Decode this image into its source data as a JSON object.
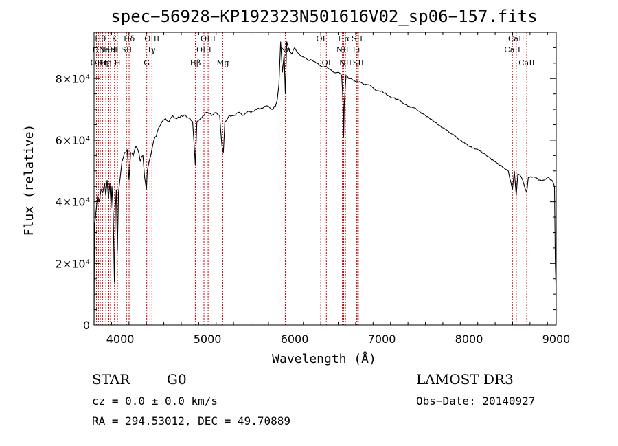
{
  "chart_data": {
    "type": "line",
    "title": "spec−56928−KP192323N501616V02_sp06−157.fits",
    "xlabel": "Wavelength (Å)",
    "ylabel": "Flux (relative)",
    "xlim": [
      3700,
      9000
    ],
    "ylim": [
      0,
      95000
    ],
    "xticks": [
      {
        "value": 4000,
        "label": "4000"
      },
      {
        "value": 5000,
        "label": "5000"
      },
      {
        "value": 6000,
        "label": "6000"
      },
      {
        "value": 7000,
        "label": "7000"
      },
      {
        "value": 8000,
        "label": "8000"
      },
      {
        "value": 9000,
        "label": "9000"
      }
    ],
    "yticks": [
      {
        "value": 0,
        "label": "0"
      },
      {
        "value": 20000,
        "label": "2×10⁴"
      },
      {
        "value": 40000,
        "label": "4×10⁴"
      },
      {
        "value": 60000,
        "label": "6×10⁴"
      },
      {
        "value": 80000,
        "label": "8×10⁴"
      }
    ],
    "spectrum": [
      [
        3700,
        0
      ],
      [
        3705,
        32000
      ],
      [
        3720,
        36000
      ],
      [
        3740,
        42000
      ],
      [
        3760,
        40000
      ],
      [
        3780,
        44000
      ],
      [
        3800,
        43000
      ],
      [
        3820,
        46000
      ],
      [
        3835,
        42000
      ],
      [
        3850,
        47000
      ],
      [
        3865,
        41000
      ],
      [
        3880,
        46000
      ],
      [
        3895,
        38000
      ],
      [
        3905,
        45000
      ],
      [
        3920,
        36000
      ],
      [
        3933,
        14000
      ],
      [
        3945,
        38000
      ],
      [
        3955,
        44000
      ],
      [
        3968,
        24000
      ],
      [
        3980,
        43000
      ],
      [
        4000,
        48000
      ],
      [
        4020,
        53000
      ],
      [
        4050,
        56000
      ],
      [
        4080,
        57000
      ],
      [
        4101,
        47000
      ],
      [
        4120,
        56000
      ],
      [
        4150,
        55000
      ],
      [
        4180,
        58000
      ],
      [
        4200,
        57000
      ],
      [
        4230,
        53000
      ],
      [
        4260,
        55000
      ],
      [
        4280,
        48000
      ],
      [
        4300,
        44000
      ],
      [
        4310,
        50000
      ],
      [
        4330,
        53000
      ],
      [
        4350,
        55000
      ],
      [
        4370,
        58000
      ],
      [
        4400,
        61000
      ],
      [
        4440,
        64000
      ],
      [
        4480,
        66000
      ],
      [
        4520,
        67000
      ],
      [
        4560,
        66000
      ],
      [
        4600,
        68000
      ],
      [
        4650,
        67000
      ],
      [
        4700,
        68000
      ],
      [
        4750,
        68000
      ],
      [
        4800,
        67000
      ],
      [
        4830,
        66000
      ],
      [
        4861,
        52000
      ],
      [
        4880,
        66000
      ],
      [
        4920,
        67000
      ],
      [
        4960,
        68000
      ],
      [
        5000,
        69000
      ],
      [
        5050,
        68000
      ],
      [
        5100,
        69000
      ],
      [
        5140,
        68000
      ],
      [
        5167,
        58000
      ],
      [
        5183,
        56000
      ],
      [
        5200,
        66000
      ],
      [
        5250,
        68000
      ],
      [
        5300,
        68000
      ],
      [
        5350,
        69000
      ],
      [
        5400,
        68000
      ],
      [
        5450,
        69000
      ],
      [
        5500,
        69000
      ],
      [
        5550,
        70000
      ],
      [
        5600,
        70000
      ],
      [
        5650,
        71000
      ],
      [
        5700,
        71000
      ],
      [
        5740,
        70000
      ],
      [
        5780,
        71000
      ],
      [
        5800,
        73000
      ],
      [
        5820,
        78000
      ],
      [
        5840,
        92000
      ],
      [
        5860,
        82000
      ],
      [
        5880,
        88000
      ],
      [
        5893,
        75000
      ],
      [
        5910,
        92000
      ],
      [
        5940,
        89000
      ],
      [
        5970,
        88000
      ],
      [
        6000,
        90000
      ],
      [
        6050,
        88000
      ],
      [
        6100,
        87000
      ],
      [
        6150,
        86000
      ],
      [
        6200,
        86000
      ],
      [
        6250,
        85000
      ],
      [
        6300,
        84000
      ],
      [
        6350,
        84000
      ],
      [
        6400,
        83000
      ],
      [
        6450,
        82000
      ],
      [
        6500,
        82000
      ],
      [
        6540,
        81000
      ],
      [
        6560,
        70000
      ],
      [
        6563,
        61000
      ],
      [
        6570,
        72000
      ],
      [
        6590,
        81000
      ],
      [
        6620,
        80000
      ],
      [
        6650,
        80000
      ],
      [
        6700,
        79000
      ],
      [
        6750,
        79000
      ],
      [
        6800,
        78000
      ],
      [
        6850,
        78000
      ],
      [
        6900,
        77000
      ],
      [
        6950,
        76000
      ],
      [
        7000,
        76000
      ],
      [
        7100,
        74000
      ],
      [
        7200,
        73000
      ],
      [
        7300,
        71000
      ],
      [
        7400,
        70000
      ],
      [
        7500,
        68000
      ],
      [
        7600,
        66000
      ],
      [
        7700,
        64000
      ],
      [
        7800,
        62000
      ],
      [
        7900,
        60000
      ],
      [
        8000,
        58000
      ],
      [
        8100,
        57000
      ],
      [
        8200,
        55000
      ],
      [
        8300,
        53000
      ],
      [
        8400,
        51000
      ],
      [
        8450,
        50000
      ],
      [
        8498,
        44000
      ],
      [
        8520,
        50000
      ],
      [
        8542,
        42000
      ],
      [
        8560,
        49000
      ],
      [
        8600,
        48000
      ],
      [
        8662,
        43000
      ],
      [
        8680,
        48000
      ],
      [
        8750,
        48000
      ],
      [
        8800,
        47000
      ],
      [
        8850,
        47000
      ],
      [
        8900,
        48000
      ],
      [
        8950,
        47000
      ],
      [
        8980,
        45000
      ],
      [
        8990,
        20000
      ],
      [
        9000,
        10000
      ]
    ],
    "lines": [
      {
        "wave": 3727,
        "label": "OII",
        "row": 2
      },
      {
        "wave": 3750,
        "label": "OII",
        "row": 1
      },
      {
        "wave": 3771,
        "label": "Hθ",
        "row": 0
      },
      {
        "wave": 3797,
        "label": "Hη",
        "row": 2
      },
      {
        "wave": 3835,
        "label": "Hη",
        "row": 2
      },
      {
        "wave": 3869,
        "label": "NeIII",
        "row": 1
      },
      {
        "wave": 3889,
        "label": "HeI",
        "row": 1
      },
      {
        "wave": 3934,
        "label": "K",
        "row": 0
      },
      {
        "wave": 3968,
        "label": "H",
        "row": 2
      },
      {
        "wave": 4072,
        "label": "SII",
        "row": 1
      },
      {
        "wave": 4102,
        "label": "Hδ",
        "row": 0
      },
      {
        "wave": 4304,
        "label": "G",
        "row": 2
      },
      {
        "wave": 4341,
        "label": "Hγ",
        "row": 1
      },
      {
        "wave": 4364,
        "label": "OIII",
        "row": 0
      },
      {
        "wave": 4861,
        "label": "Hβ",
        "row": 2
      },
      {
        "wave": 4960,
        "label": "OIII",
        "row": 1
      },
      {
        "wave": 5008,
        "label": "OIII",
        "row": 0
      },
      {
        "wave": 5176,
        "label": "Mg",
        "row": 2
      },
      {
        "wave": 5893,
        "label": "Na",
        "row": 1
      },
      {
        "wave": 6300,
        "label": "OI",
        "row": 0
      },
      {
        "wave": 6364,
        "label": "OI",
        "row": 2
      },
      {
        "wave": 6548,
        "label": "NII",
        "row": 1
      },
      {
        "wave": 6563,
        "label": "Hα",
        "row": 0
      },
      {
        "wave": 6583,
        "label": "NII",
        "row": 2
      },
      {
        "wave": 6708,
        "label": "Li",
        "row": 1
      },
      {
        "wave": 6717,
        "label": "SII",
        "row": 0
      },
      {
        "wave": 6731,
        "label": "SII",
        "row": 2
      },
      {
        "wave": 8498,
        "label": "CaII",
        "row": 1
      },
      {
        "wave": 8542,
        "label": "CaII",
        "row": 0
      },
      {
        "wave": 8662,
        "label": "CaII",
        "row": 2
      }
    ]
  },
  "info": {
    "class": "STAR",
    "subclass": "G0",
    "survey": "LAMOST DR3",
    "cz": "cz = 0.0 ± 0.0 km/s",
    "obs_date": "Obs−Date: 20140927",
    "coords": "RA = 294.53012, DEC =  49.70889"
  },
  "colors": {
    "spectrum": "#000000",
    "line_marker": "#cc0000",
    "axis": "#000000"
  }
}
